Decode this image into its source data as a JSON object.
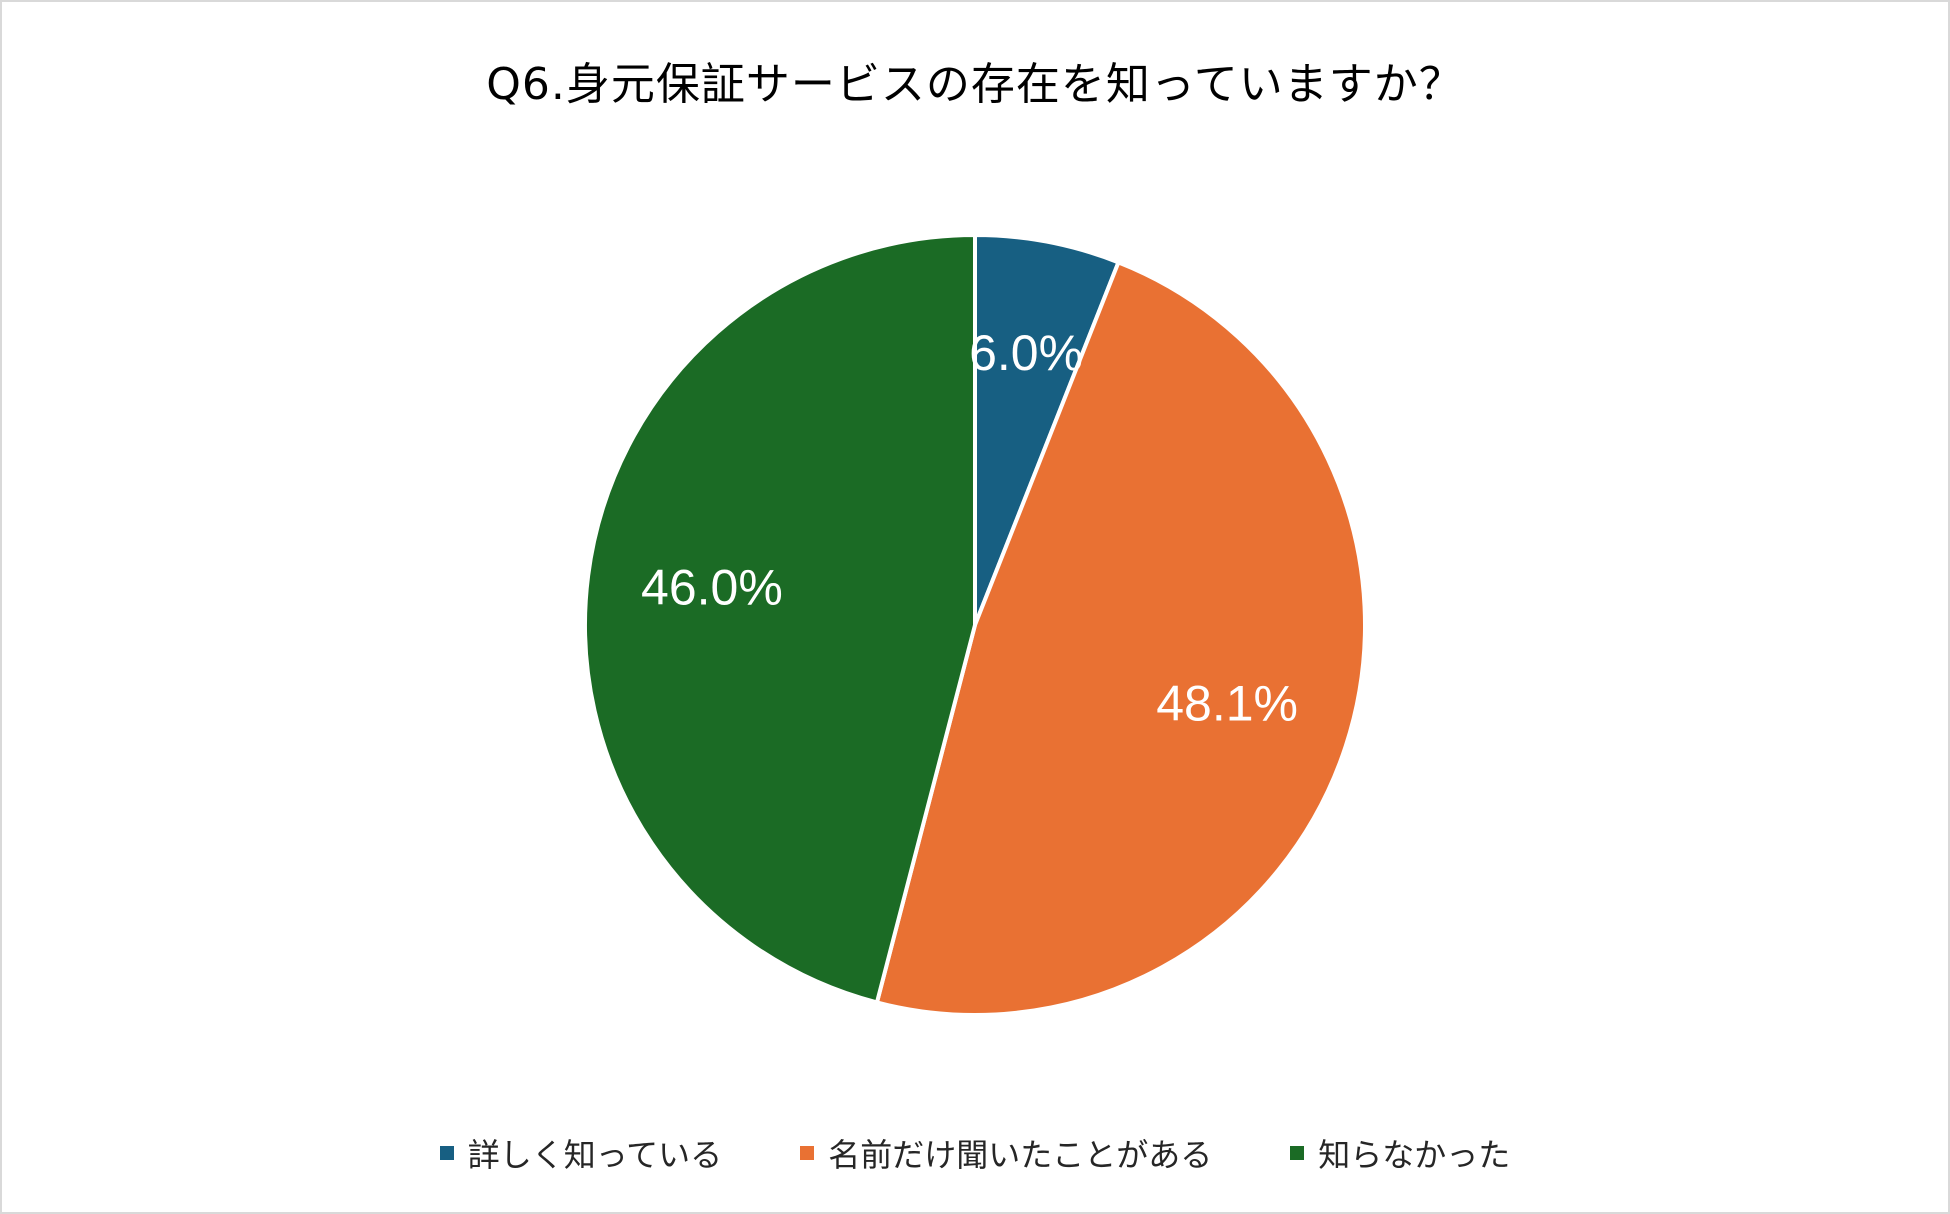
{
  "chart_data": {
    "type": "pie",
    "title": "Q6.身元保証サービスの存在を知っていますか？",
    "categories": [
      "詳しく知っている",
      "名前だけ聞いたことがある",
      "知らなかった"
    ],
    "values": [
      6.0,
      48.1,
      46.0
    ],
    "labels": [
      "6.0%",
      "48.1%",
      "46.0%"
    ],
    "colors": [
      "#175f82",
      "#e97133",
      "#1b6b25"
    ],
    "legend_position": "bottom"
  }
}
